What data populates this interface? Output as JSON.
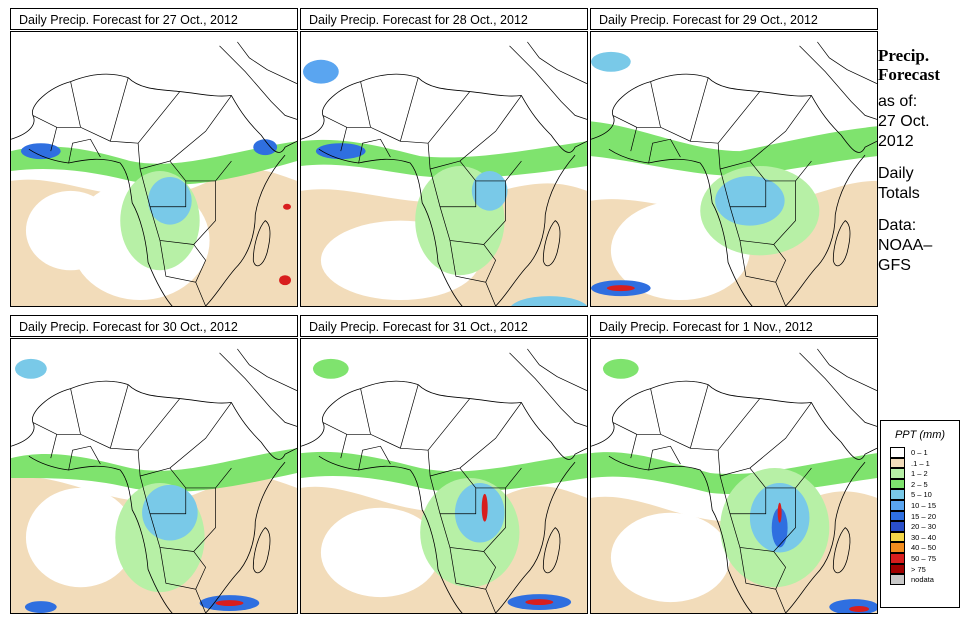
{
  "panels": [
    {
      "title": "Daily Precip. Forecast for  27 Oct., 2012"
    },
    {
      "title": "Daily Precip. Forecast for  28 Oct., 2012"
    },
    {
      "title": "Daily Precip. Forecast for  29 Oct., 2012"
    },
    {
      "title": "Daily Precip. Forecast for  30 Oct., 2012"
    },
    {
      "title": "Daily Precip. Forecast for  31 Oct., 2012"
    },
    {
      "title": "Daily Precip. Forecast for  1 Nov., 2012"
    }
  ],
  "side": {
    "heading1": "Precip.",
    "heading2": "Forecast",
    "asof1": "as of:",
    "asof2": "27 Oct.",
    "asof3": "2012",
    "daily1": "Daily",
    "daily2": "Totals",
    "data1": "Data:",
    "data2": "NOAA–",
    "data3": "GFS"
  },
  "legend": {
    "title": "PPT (mm)",
    "items": [
      {
        "label": "0 – 1",
        "color": "#ffffff"
      },
      {
        "label": ".1 – 1",
        "color": "#f2dcba"
      },
      {
        "label": "1 – 2",
        "color": "#b7f0a6"
      },
      {
        "label": "2 – 5",
        "color": "#7fe36e"
      },
      {
        "label": "5 – 10",
        "color": "#79c9e8"
      },
      {
        "label": "10 – 15",
        "color": "#5aa5f0"
      },
      {
        "label": "15 – 20",
        "color": "#2f6fe0"
      },
      {
        "label": "20 – 30",
        "color": "#2a4fc8"
      },
      {
        "label": "30 – 40",
        "color": "#f5d84a"
      },
      {
        "label": "40 – 50",
        "color": "#f28c1e"
      },
      {
        "label": "50 – 75",
        "color": "#d81e1e"
      },
      {
        "label": "> 75",
        "color": "#a00000"
      },
      {
        "label": "nodata",
        "color": "#c8c8c8"
      }
    ]
  }
}
